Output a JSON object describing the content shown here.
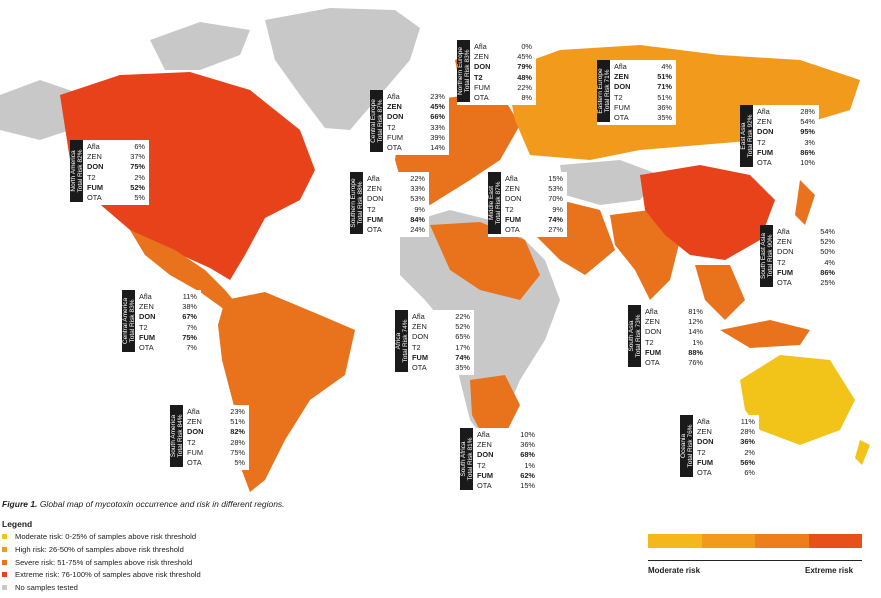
{
  "caption": {
    "label": "Figure 1.",
    "text": "Global map of mycotoxin occurrence and risk in different regions."
  },
  "legend": {
    "title": "Legend",
    "items": [
      {
        "label": "Moderate risk: 0-25% of samples above risk threshold",
        "color": "#f2c41a"
      },
      {
        "label": "High risk: 26-50% of samples above risk threshold",
        "color": "#f29a1c"
      },
      {
        "label": "Severe risk: 51-75% of samples above risk threshold",
        "color": "#e8731c"
      },
      {
        "label": "Extreme risk: 76-100% of samples above risk threshold",
        "color": "#e8421a"
      },
      {
        "label": "No samples tested",
        "color": "#c8c8c8"
      }
    ],
    "scale": {
      "min_label": "Moderate risk",
      "max_label": "Extreme risk",
      "colors": [
        "#f4b81c",
        "#f29a1c",
        "#ee7e1c",
        "#e8501a"
      ]
    }
  },
  "regions": [
    {
      "name": "North America",
      "total": "Total Risk 82%",
      "afla": "6%",
      "zen": "37%",
      "don": "75%",
      "t2": "2%",
      "fum": "52%",
      "ota": "5%",
      "bold": [
        "DON",
        "FUM"
      ]
    },
    {
      "name": "Central Europe",
      "total": "Total Risk 87%",
      "afla": "23%",
      "zen": "45%",
      "don": "66%",
      "t2": "33%",
      "fum": "39%",
      "ota": "14%",
      "bold": [
        "ZEN",
        "DON"
      ]
    },
    {
      "name": "Northern Europe",
      "total": "Total Risk 83%",
      "afla": "0%",
      "zen": "45%",
      "don": "79%",
      "t2": "48%",
      "fum": "22%",
      "ota": "8%",
      "bold": [
        "DON",
        "T2"
      ]
    },
    {
      "name": "Eastern Europe",
      "total": "Total Risk 71%",
      "afla": "4%",
      "zen": "51%",
      "don": "71%",
      "t2": "51%",
      "fum": "36%",
      "ota": "35%",
      "bold": [
        "ZEN",
        "DON"
      ]
    },
    {
      "name": "East Asia",
      "total": "Total Risk 92%",
      "afla": "28%",
      "zen": "54%",
      "don": "95%",
      "t2": "3%",
      "fum": "86%",
      "ota": "10%",
      "bold": [
        "DON",
        "FUM"
      ]
    },
    {
      "name": "Southern Europe",
      "total": "Total Risk 88%",
      "afla": "22%",
      "zen": "33%",
      "don": "53%",
      "t2": "9%",
      "fum": "84%",
      "ota": "24%",
      "bold": [
        "FUM"
      ]
    },
    {
      "name": "Middle East",
      "total": "Total Risk 87%",
      "afla": "15%",
      "zen": "53%",
      "don": "70%",
      "t2": "9%",
      "fum": "74%",
      "ota": "27%",
      "bold": [
        "FUM"
      ]
    },
    {
      "name": "South East Asia",
      "total": "Total Risk 90%",
      "afla": "54%",
      "zen": "52%",
      "don": "50%",
      "t2": "4%",
      "fum": "86%",
      "ota": "25%",
      "bold": [
        "FUM"
      ]
    },
    {
      "name": "Central America",
      "total": "Total Risk 83%",
      "afla": "11%",
      "zen": "38%",
      "don": "67%",
      "t2": "7%",
      "fum": "75%",
      "ota": "7%",
      "bold": [
        "DON",
        "FUM"
      ]
    },
    {
      "name": "Africa",
      "total": "Total Risk 74%",
      "afla": "22%",
      "zen": "52%",
      "don": "65%",
      "t2": "17%",
      "fum": "74%",
      "ota": "35%",
      "bold": [
        "FUM"
      ]
    },
    {
      "name": "South Asia",
      "total": "Total Risk 73%",
      "afla": "81%",
      "zen": "12%",
      "don": "14%",
      "t2": "1%",
      "fum": "88%",
      "ota": "76%",
      "bold": [
        "FUM"
      ]
    },
    {
      "name": "South America",
      "total": "Total Risk 84%",
      "afla": "23%",
      "zen": "51%",
      "don": "82%",
      "t2": "28%",
      "fum": "75%",
      "ota": "5%",
      "bold": [
        "DON"
      ]
    },
    {
      "name": "South Africa",
      "total": "Total Risk 81%",
      "afla": "10%",
      "zen": "36%",
      "don": "68%",
      "t2": "1%",
      "fum": "62%",
      "ota": "15%",
      "bold": [
        "DON",
        "FUM"
      ]
    },
    {
      "name": "Oceania",
      "total": "Total Risk 76%",
      "afla": "11%",
      "zen": "28%",
      "don": "36%",
      "t2": "2%",
      "fum": "56%",
      "ota": "6%",
      "bold": [
        "DON",
        "FUM"
      ]
    }
  ]
}
